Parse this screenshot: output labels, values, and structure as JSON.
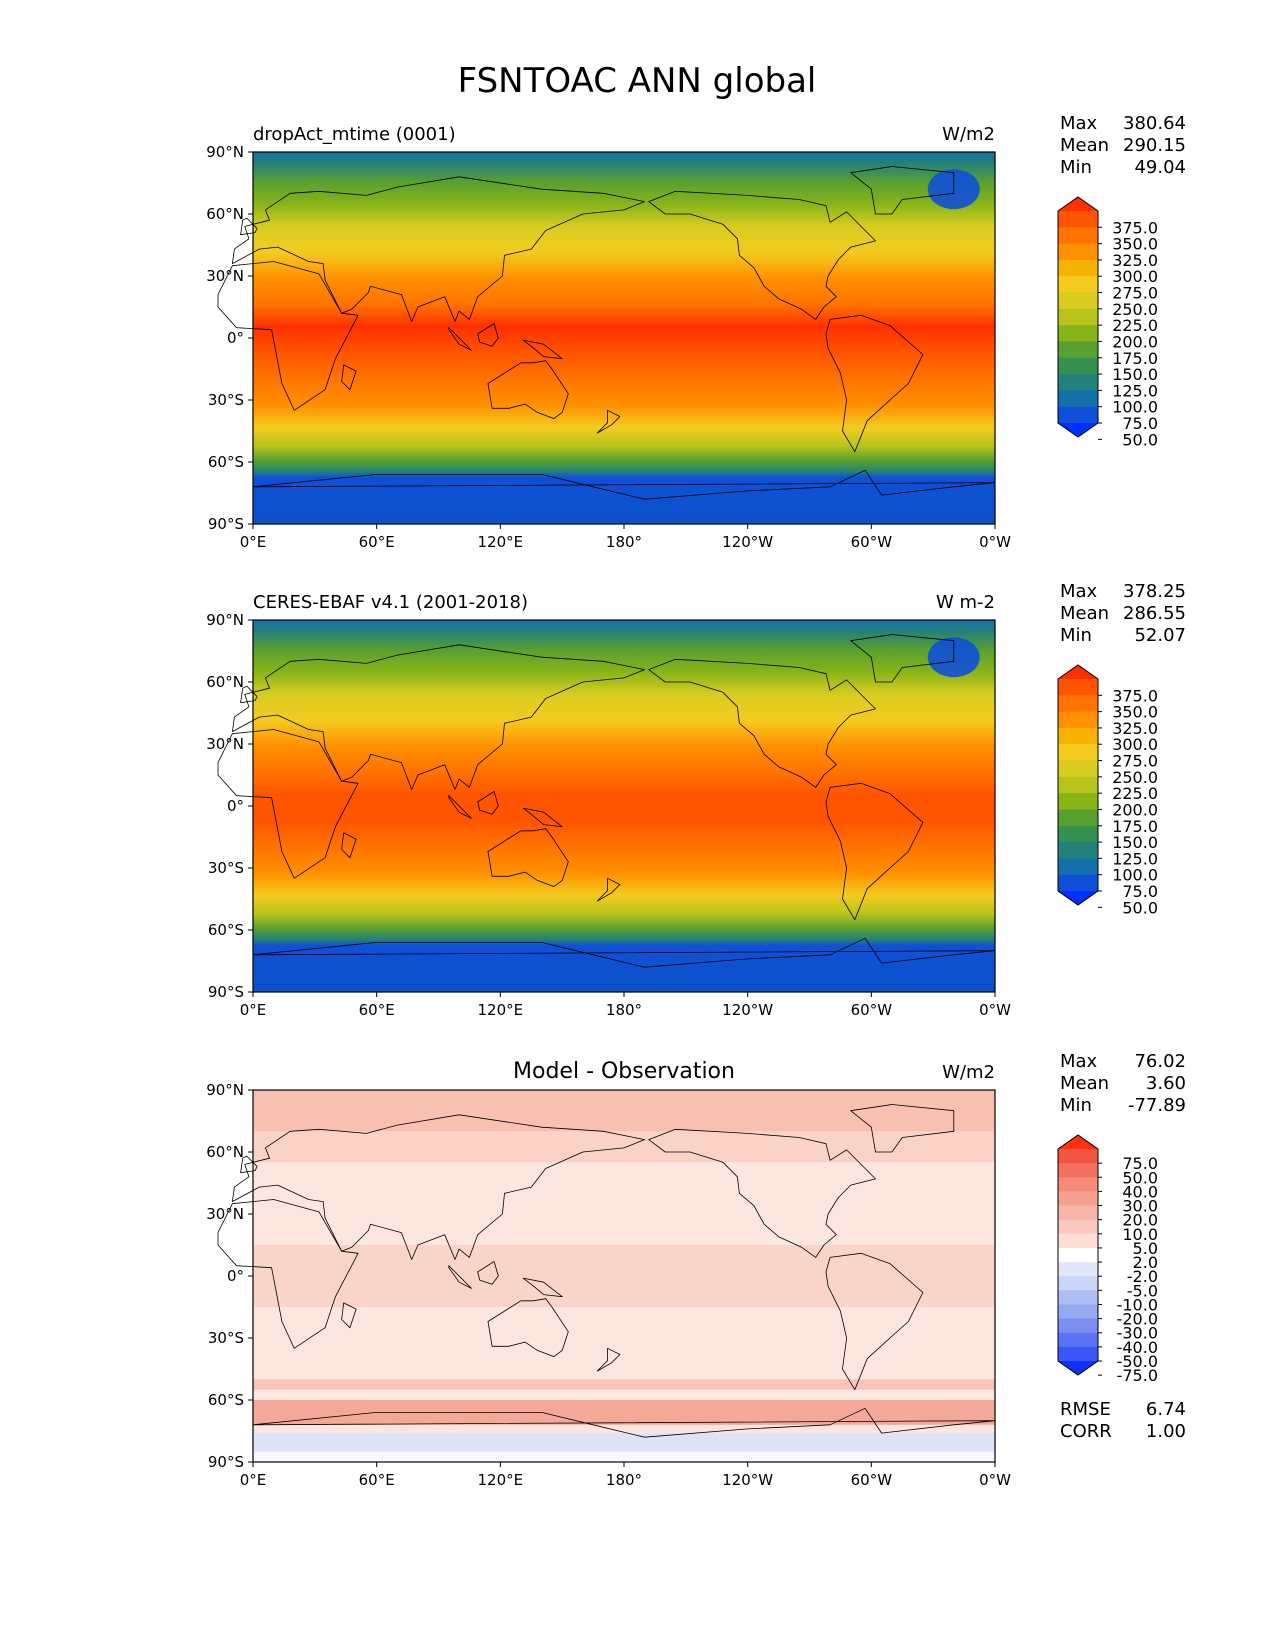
{
  "title": "FSNTOAC ANN global",
  "lat_ticks": [
    "90°N",
    "60°N",
    "30°N",
    "0°",
    "30°S",
    "60°S",
    "90°S"
  ],
  "lon_ticks": [
    "0°E",
    "60°E",
    "120°E",
    "180°",
    "120°W",
    "60°W",
    "0°W"
  ],
  "panels": [
    {
      "id": "model",
      "left_label": "dropAct_mtime (0001)",
      "center_label": "",
      "units": "W/m2",
      "stats": [
        {
          "label": "Max",
          "value": "380.64"
        },
        {
          "label": "Mean",
          "value": "290.15"
        },
        {
          "label": "Min",
          "value": "49.04"
        }
      ],
      "colorbar": {
        "levels": [
          "375.0",
          "350.0",
          "325.0",
          "300.0",
          "275.0",
          "250.0",
          "225.0",
          "200.0",
          "175.0",
          "150.0",
          "125.0",
          "100.0",
          "75.0",
          "50.0"
        ],
        "colors": [
          "#ff3000",
          "#ff5500",
          "#ff7300",
          "#ff9000",
          "#f6b200",
          "#f4cb20",
          "#d8cc20",
          "#b8c41c",
          "#88b418",
          "#58a030",
          "#369050",
          "#24807a",
          "#1470a8",
          "#1050d8",
          "#0030ff"
        ]
      },
      "extra": []
    },
    {
      "id": "obs",
      "left_label": "CERES-EBAF v4.1 (2001-2018)",
      "center_label": "",
      "units": "W m-2",
      "stats": [
        {
          "label": "Max",
          "value": "378.25"
        },
        {
          "label": "Mean",
          "value": "286.55"
        },
        {
          "label": "Min",
          "value": "52.07"
        }
      ],
      "colorbar": {
        "levels": [
          "375.0",
          "350.0",
          "325.0",
          "300.0",
          "275.0",
          "250.0",
          "225.0",
          "200.0",
          "175.0",
          "150.0",
          "125.0",
          "100.0",
          "75.0",
          "50.0"
        ],
        "colors": [
          "#ff3000",
          "#ff5500",
          "#ff7300",
          "#ff9000",
          "#f6b200",
          "#f4cb20",
          "#d8cc20",
          "#b8c41c",
          "#88b418",
          "#58a030",
          "#369050",
          "#24807a",
          "#1470a8",
          "#1050d8",
          "#0030ff"
        ]
      },
      "extra": []
    },
    {
      "id": "diff",
      "left_label": "",
      "center_label": "Model - Observation",
      "units": "W/m2",
      "stats": [
        {
          "label": "Max",
          "value": "76.02"
        },
        {
          "label": "Mean",
          "value": "3.60"
        },
        {
          "label": "Min",
          "value": "-77.89"
        }
      ],
      "colorbar": {
        "levels": [
          "75.0",
          "50.0",
          "40.0",
          "30.0",
          "20.0",
          "10.0",
          "5.0",
          "2.0",
          "-2.0",
          "-5.0",
          "-10.0",
          "-20.0",
          "-30.0",
          "-40.0",
          "-50.0",
          "-75.0"
        ],
        "colors": [
          "#ff3010",
          "#f05540",
          "#f27060",
          "#f48a78",
          "#f6a090",
          "#f8b4a6",
          "#fac8bc",
          "#fce0d8",
          "#ffffff",
          "#e2e8fa",
          "#cad6f6",
          "#aebef2",
          "#96a8ef",
          "#7c8ef0",
          "#5c72f4",
          "#3c56f8",
          "#1030ff"
        ]
      },
      "extra": [
        {
          "label": "RMSE",
          "value": "6.74"
        },
        {
          "label": "CORR",
          "value": "1.00"
        }
      ]
    }
  ]
}
